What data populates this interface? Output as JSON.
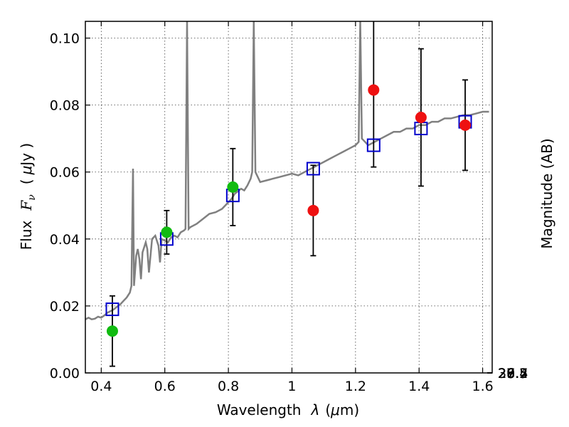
{
  "chart_data": {
    "type": "scatter",
    "xlabel_prefix": "Wavelength",
    "xlabel_symbol": "λ",
    "xlabel_unit_open": "(",
    "xlabel_unit_mu": "μ",
    "xlabel_unit_rest": "m)",
    "ylabel_prefix": "Flux",
    "ylabel_symbol_main": "F",
    "ylabel_symbol_sub": "ν",
    "ylabel_unit_open": "(",
    "ylabel_unit_mu": "μ",
    "ylabel_unit_rest": "Jy )",
    "y2label": "Magnitude (AB)",
    "xlim": [
      0.35,
      1.63
    ],
    "ylim": [
      0.0,
      0.105
    ],
    "grid": true,
    "x_ticks": [
      {
        "value": 0.4,
        "label": "0.4"
      },
      {
        "value": 0.6,
        "label": "0.6"
      },
      {
        "value": 0.8,
        "label": "0.8"
      },
      {
        "value": 1.0,
        "label": "1"
      },
      {
        "value": 1.2,
        "label": "1.2"
      },
      {
        "value": 1.4,
        "label": "1.4"
      },
      {
        "value": 1.6,
        "label": "1.6"
      }
    ],
    "y_ticks": [
      {
        "value": 0.0,
        "label": "0.00"
      },
      {
        "value": 0.02,
        "label": "0.02"
      },
      {
        "value": 0.04,
        "label": "0.04"
      },
      {
        "value": 0.06,
        "label": "0.06"
      },
      {
        "value": 0.08,
        "label": "0.08"
      },
      {
        "value": 0.1,
        "label": "0.10"
      }
    ],
    "mag_ticks": [
      {
        "value": 26.4,
        "label": "26.4"
      },
      {
        "value": 26.5,
        "label": "26.5"
      },
      {
        "value": 26.7,
        "label": "26.7"
      },
      {
        "value": 27.0,
        "label": "27"
      },
      {
        "value": 27.2,
        "label": "27.2"
      },
      {
        "value": 27.5,
        "label": "27.5"
      },
      {
        "value": 28.0,
        "label": "28"
      },
      {
        "value": 28.5,
        "label": "28.5"
      },
      {
        "value": 29.0,
        "label": "29"
      },
      {
        "value": 30.0,
        "label": "30"
      }
    ],
    "mag_zero_point_ujy": 3630.78,
    "series": [
      {
        "name": "model spectrum",
        "kind": "line",
        "color": "#808080",
        "points": [
          [
            0.35,
            0.016
          ],
          [
            0.36,
            0.0165
          ],
          [
            0.37,
            0.016
          ],
          [
            0.38,
            0.0162
          ],
          [
            0.39,
            0.0168
          ],
          [
            0.4,
            0.0165
          ],
          [
            0.41,
            0.0172
          ],
          [
            0.42,
            0.018
          ],
          [
            0.43,
            0.0185
          ],
          [
            0.44,
            0.019
          ],
          [
            0.45,
            0.0198
          ],
          [
            0.46,
            0.0205
          ],
          [
            0.47,
            0.0215
          ],
          [
            0.48,
            0.0225
          ],
          [
            0.49,
            0.024
          ],
          [
            0.495,
            0.026
          ],
          [
            0.5,
            0.061
          ],
          [
            0.503,
            0.026
          ],
          [
            0.51,
            0.035
          ],
          [
            0.515,
            0.037
          ],
          [
            0.52,
            0.034
          ],
          [
            0.525,
            0.028
          ],
          [
            0.53,
            0.036
          ],
          [
            0.54,
            0.039
          ],
          [
            0.545,
            0.037
          ],
          [
            0.55,
            0.03
          ],
          [
            0.56,
            0.04
          ],
          [
            0.57,
            0.041
          ],
          [
            0.58,
            0.038
          ],
          [
            0.585,
            0.033
          ],
          [
            0.59,
            0.04
          ],
          [
            0.6,
            0.0395
          ],
          [
            0.61,
            0.039
          ],
          [
            0.62,
            0.0405
          ],
          [
            0.63,
            0.041
          ],
          [
            0.64,
            0.0405
          ],
          [
            0.65,
            0.042
          ],
          [
            0.66,
            0.0425
          ],
          [
            0.665,
            0.043
          ],
          [
            0.67,
            0.105
          ],
          [
            0.675,
            0.043
          ],
          [
            0.68,
            0.0435
          ],
          [
            0.7,
            0.0445
          ],
          [
            0.72,
            0.046
          ],
          [
            0.74,
            0.0475
          ],
          [
            0.76,
            0.048
          ],
          [
            0.78,
            0.049
          ],
          [
            0.8,
            0.051
          ],
          [
            0.81,
            0.052
          ],
          [
            0.82,
            0.0535
          ],
          [
            0.84,
            0.055
          ],
          [
            0.85,
            0.0545
          ],
          [
            0.86,
            0.056
          ],
          [
            0.87,
            0.058
          ],
          [
            0.875,
            0.06
          ],
          [
            0.88,
            0.105
          ],
          [
            0.885,
            0.06
          ],
          [
            0.9,
            0.057
          ],
          [
            0.92,
            0.0575
          ],
          [
            0.94,
            0.058
          ],
          [
            0.96,
            0.0585
          ],
          [
            0.98,
            0.059
          ],
          [
            1.0,
            0.0595
          ],
          [
            1.02,
            0.059
          ],
          [
            1.04,
            0.06
          ],
          [
            1.06,
            0.061
          ],
          [
            1.08,
            0.062
          ],
          [
            1.1,
            0.063
          ],
          [
            1.12,
            0.064
          ],
          [
            1.14,
            0.065
          ],
          [
            1.16,
            0.066
          ],
          [
            1.18,
            0.067
          ],
          [
            1.2,
            0.068
          ],
          [
            1.21,
            0.069
          ],
          [
            1.215,
            0.105
          ],
          [
            1.22,
            0.07
          ],
          [
            1.24,
            0.068
          ],
          [
            1.26,
            0.069
          ],
          [
            1.28,
            0.07
          ],
          [
            1.3,
            0.071
          ],
          [
            1.32,
            0.072
          ],
          [
            1.34,
            0.072
          ],
          [
            1.36,
            0.073
          ],
          [
            1.38,
            0.073
          ],
          [
            1.4,
            0.074
          ],
          [
            1.42,
            0.074
          ],
          [
            1.44,
            0.075
          ],
          [
            1.46,
            0.075
          ],
          [
            1.48,
            0.076
          ],
          [
            1.5,
            0.076
          ],
          [
            1.52,
            0.0765
          ],
          [
            1.54,
            0.077
          ],
          [
            1.56,
            0.077
          ],
          [
            1.58,
            0.0775
          ],
          [
            1.6,
            0.078
          ],
          [
            1.62,
            0.078
          ]
        ]
      },
      {
        "name": "model photometry",
        "kind": "open-square",
        "color": "#0000cc",
        "points": [
          [
            0.435,
            0.019
          ],
          [
            0.606,
            0.04
          ],
          [
            0.814,
            0.053
          ],
          [
            1.067,
            0.061
          ],
          [
            1.257,
            0.068
          ],
          [
            1.406,
            0.073
          ],
          [
            1.545,
            0.075
          ]
        ]
      },
      {
        "name": "optical detections",
        "kind": "filled-circle",
        "color": "#11bb11",
        "points": [
          {
            "x": 0.435,
            "y": 0.0125,
            "err": 0.0105
          },
          {
            "x": 0.606,
            "y": 0.042,
            "err": 0.0065
          },
          {
            "x": 0.814,
            "y": 0.0555,
            "err": 0.0115
          }
        ]
      },
      {
        "name": "near-IR detections",
        "kind": "filled-circle",
        "color": "#ee1111",
        "points": [
          {
            "x": 1.067,
            "y": 0.0485,
            "err": 0.0135
          },
          {
            "x": 1.257,
            "y": 0.0845,
            "err": 0.023
          },
          {
            "x": 1.406,
            "y": 0.0763,
            "err": 0.0205
          },
          {
            "x": 1.545,
            "y": 0.074,
            "err": 0.0135
          }
        ]
      }
    ]
  }
}
